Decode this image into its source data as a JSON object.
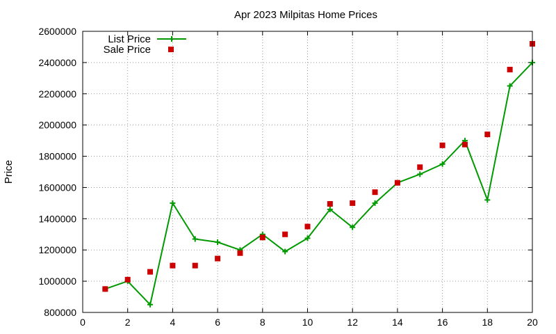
{
  "chart_data": {
    "type": "line",
    "title": "Apr 2023 Milpitas Home Prices",
    "xlabel": "",
    "ylabel": "Price",
    "xlim": [
      0,
      20
    ],
    "ylim": [
      800000,
      2600000
    ],
    "x_ticks": [
      "0",
      "2",
      "4",
      "6",
      "8",
      "10",
      "12",
      "14",
      "16",
      "18",
      "20"
    ],
    "y_ticks": [
      "800000",
      "1000000",
      "1200000",
      "1400000",
      "1600000",
      "1800000",
      "2000000",
      "2200000",
      "2400000",
      "2600000"
    ],
    "grid": true,
    "legend_position": "top-left",
    "series": [
      {
        "name": "List Price",
        "style": "line-with-plus-markers",
        "color": "#009900",
        "x": [
          1,
          2,
          3,
          4,
          5,
          6,
          7,
          8,
          9,
          10,
          11,
          12,
          13,
          14,
          15,
          16,
          17,
          18,
          19,
          20
        ],
        "values": [
          950000,
          1000000,
          850000,
          1500000,
          1270000,
          1250000,
          1200000,
          1300000,
          1190000,
          1275000,
          1460000,
          1345000,
          1500000,
          1630000,
          1685000,
          1750000,
          1900000,
          1520000,
          2250000,
          2400000
        ]
      },
      {
        "name": "Sale Price",
        "style": "square-markers",
        "color": "#cc0000",
        "x": [
          1,
          2,
          3,
          4,
          5,
          6,
          7,
          8,
          9,
          10,
          11,
          12,
          13,
          14,
          15,
          16,
          17,
          18,
          19,
          20
        ],
        "values": [
          950000,
          1010000,
          1060000,
          1100000,
          1100000,
          1145000,
          1180000,
          1280000,
          1300000,
          1350000,
          1495000,
          1500000,
          1570000,
          1630000,
          1730000,
          1870000,
          1875000,
          1940000,
          2355000,
          2520000
        ]
      }
    ]
  }
}
